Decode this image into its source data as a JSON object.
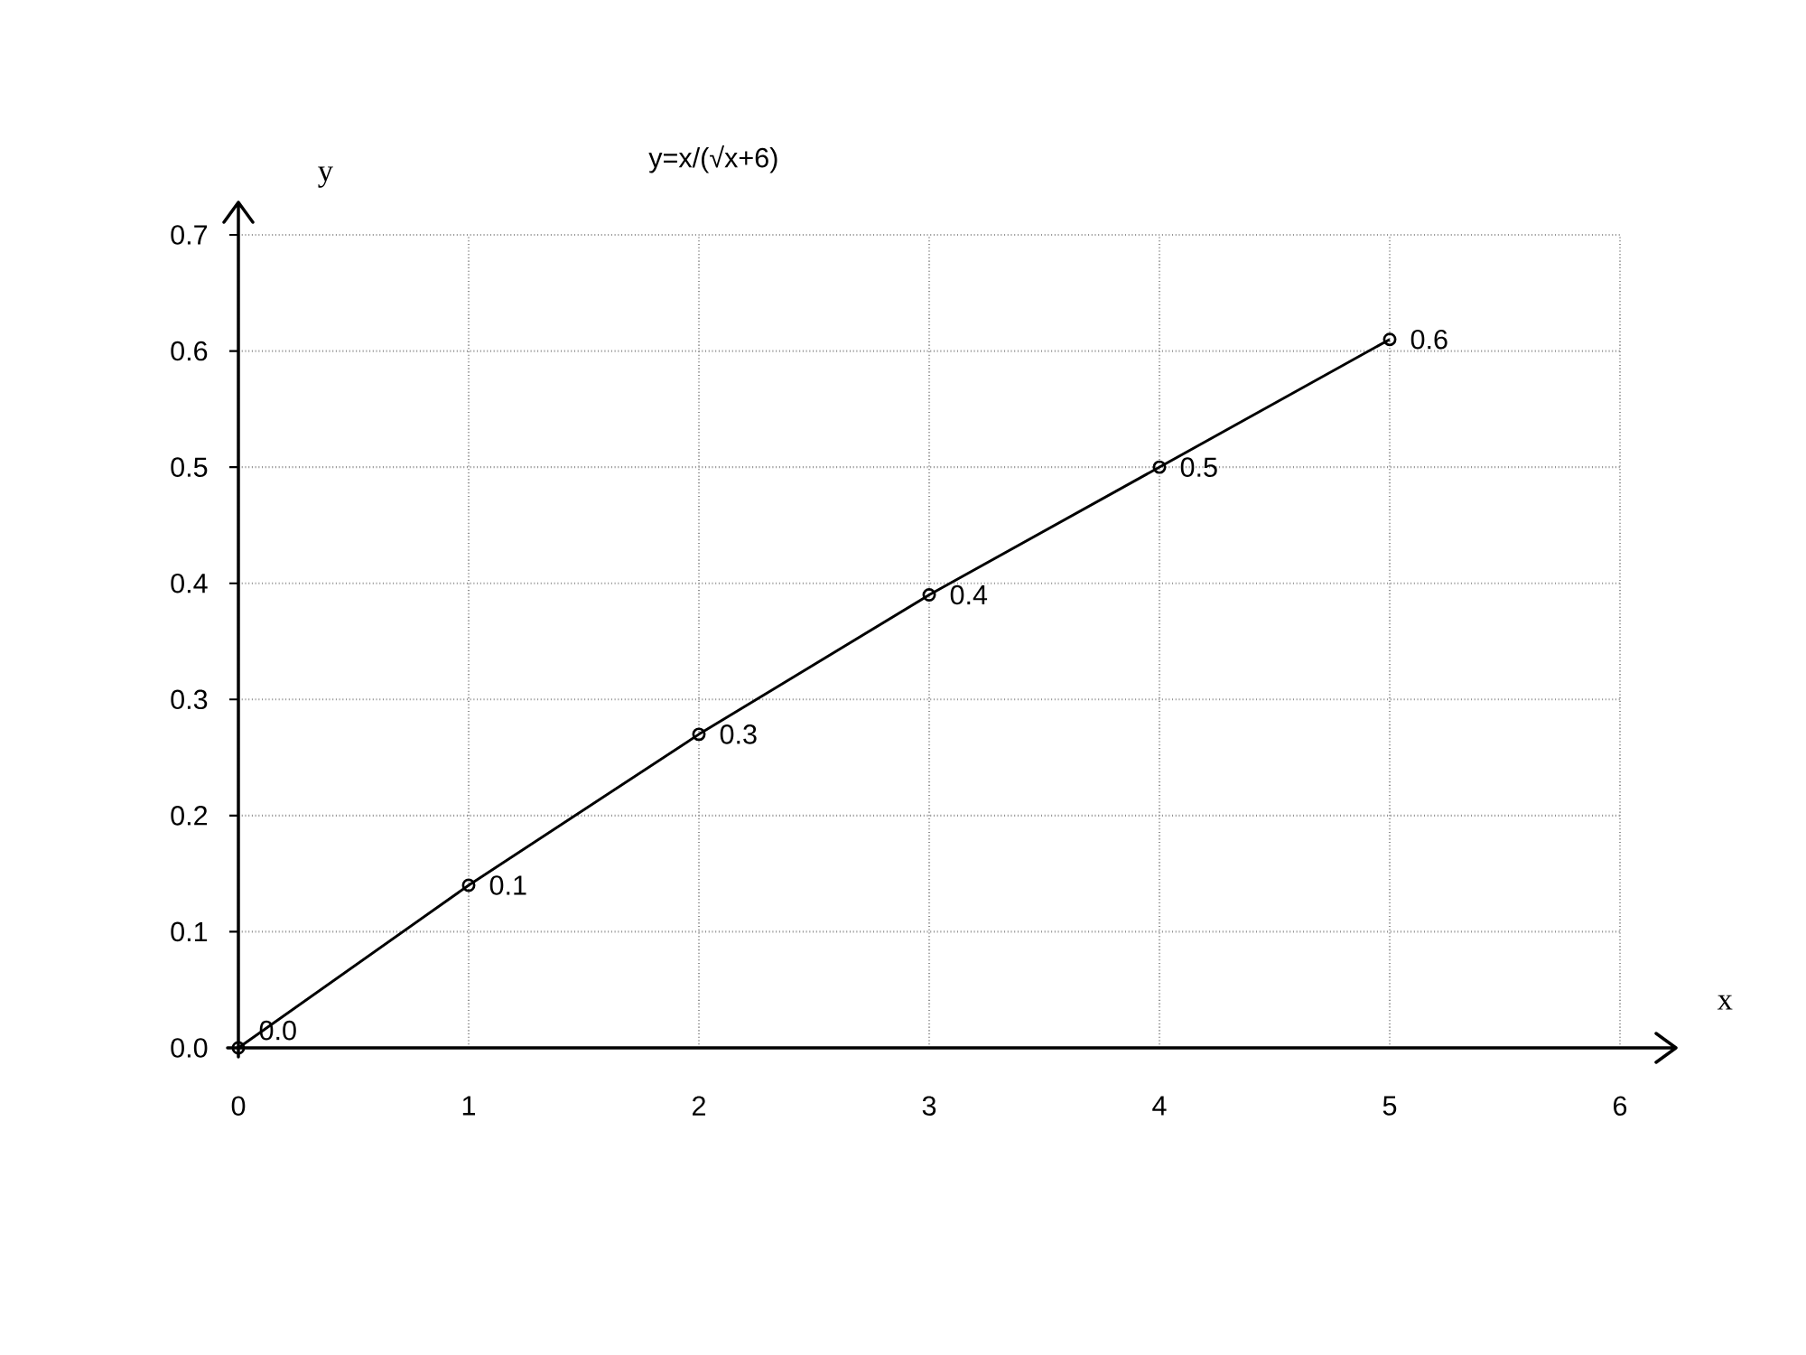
{
  "chart_data": {
    "type": "line",
    "title": "y=x/(√x+6)",
    "xlabel": "x",
    "ylabel": "y",
    "x": [
      0,
      1,
      2,
      3,
      4,
      5
    ],
    "series": [
      {
        "color": "#000000",
        "values": [
          0,
          0.14,
          0.27,
          0.39,
          0.5,
          0.61
        ],
        "value_labels": [
          "0.0",
          "0.1",
          "0.3",
          "0.4",
          "0.5",
          "0.6"
        ]
      }
    ],
    "xlim": [
      0,
      6
    ],
    "ylim": [
      0,
      0.7
    ],
    "xticks": [
      0,
      1,
      2,
      3,
      4,
      5,
      6
    ],
    "yticks": [
      {
        "value": 0,
        "label": "0.0"
      },
      0.1,
      0.2,
      0.3,
      0.4,
      0.5,
      0.6,
      0.7
    ],
    "grid": true,
    "marker": "circle",
    "line_style": "solid"
  }
}
